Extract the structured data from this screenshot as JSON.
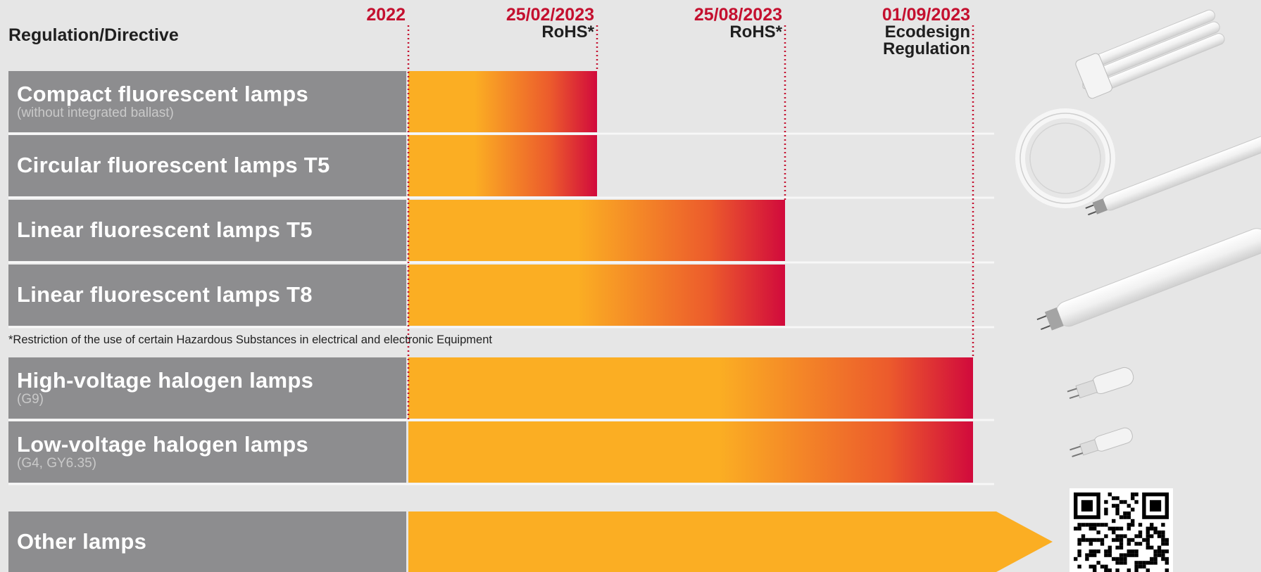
{
  "header": {
    "title": "Regulation/Directive"
  },
  "footnote": "*Restriction of the use of certain Hazardous Substances in electrical and electronic Equipment",
  "colors": {
    "bar_start": "#fbae23",
    "bar_end": "#d10a3c",
    "label_bg": "#8d8d8f",
    "milestone_text": "#c4102f",
    "page_bg": "#e6e6e6"
  },
  "chart_data": {
    "type": "bar",
    "orientation": "horizontal-timeline",
    "milestones": [
      {
        "date": "2022",
        "lines": []
      },
      {
        "date": "25/02/2023",
        "lines": [
          "RoHS*"
        ]
      },
      {
        "date": "25/08/2023",
        "lines": [
          "RoHS*"
        ]
      },
      {
        "date": "01/09/2023",
        "lines": [
          "Ecodesign",
          "Regulation"
        ]
      }
    ],
    "categories": [
      {
        "name": "Compact fluorescent lamps",
        "sub": "(without integrated ballast)",
        "end": "25/02/2023"
      },
      {
        "name": "Circular fluorescent lamps T5",
        "sub": "",
        "end": "25/02/2023"
      },
      {
        "name": "Linear fluorescent lamps T5",
        "sub": "",
        "end": "25/08/2023"
      },
      {
        "name": "Linear fluorescent lamps T8",
        "sub": "",
        "end": "25/08/2023"
      },
      {
        "name": "High-voltage halogen lamps",
        "sub": "(G9)",
        "end": "01/09/2023"
      },
      {
        "name": "Low-voltage halogen lamps",
        "sub": "(G4, GY6.35)",
        "end": "01/09/2023"
      },
      {
        "name": "Other lamps",
        "sub": "",
        "end": "ongoing"
      }
    ]
  },
  "images": {
    "lamps": [
      "compact-fluorescent-lamp-icon",
      "circular-fluorescent-lamp-icon",
      "linear-fluorescent-tube-t5-icon",
      "linear-fluorescent-tube-t8-icon",
      "g9-halogen-capsule-icon",
      "g4-halogen-capsule-icon"
    ],
    "qr": "qr-code-icon"
  }
}
